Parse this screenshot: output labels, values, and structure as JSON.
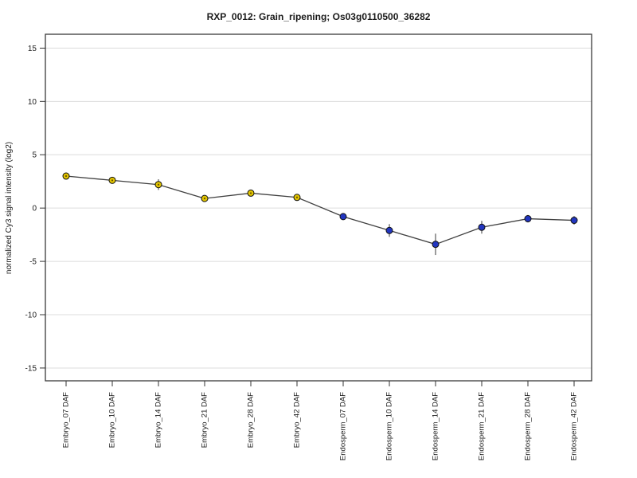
{
  "title": "RXP_0012: Grain_ripening; Os03g0110500_36282",
  "chart_data": {
    "type": "line",
    "title": "RXP_0012: Grain_ripening; Os03g0110500_36282",
    "xlabel": "",
    "ylabel": "normalized Cy3 signal intensity (log2)",
    "categories": [
      "Embryo_07 DAF",
      "Embryo_10 DAF",
      "Embryo_14 DAF",
      "Embryo_21 DAF",
      "Embryo_28 DAF",
      "Embryo_42 DAF",
      "Endosperm_07 DAF",
      "Endosperm_10 DAF",
      "Endosperm_14 DAF",
      "Endosperm_21 DAF",
      "Endosperm_28 DAF",
      "Endosperm_42 DAF"
    ],
    "series": [
      {
        "name": "normalized Cy3 signal intensity",
        "values": [
          3.0,
          2.6,
          2.2,
          0.9,
          1.4,
          1.0,
          -0.8,
          -2.1,
          -3.4,
          -1.8,
          -1.0,
          -1.15
        ],
        "errors": [
          0.15,
          0.1,
          0.5,
          0.2,
          0.1,
          0.3,
          0.2,
          0.6,
          1.0,
          0.6,
          0.35,
          0.4
        ],
        "point_color_keys": [
          "yellow",
          "yellow",
          "yellow",
          "yellow",
          "yellow",
          "yellow",
          "blue",
          "blue",
          "blue",
          "blue",
          "blue",
          "blue"
        ]
      }
    ],
    "yticks": [
      15,
      10,
      5,
      0,
      -5,
      -10,
      -15
    ],
    "ylim": [
      -16.2,
      16.3
    ],
    "grid": true,
    "legend": "none",
    "colors": {
      "yellow_marker": "#E2C500",
      "yellow_marker_center": "#6B5200",
      "blue_marker": "#2236C0",
      "marker_outline": "#111111",
      "line": "#404040",
      "grid": "#DCDCDC",
      "border": "#3a3a3a",
      "error_bar": "#4a4a4a",
      "tick": "#333333",
      "background": "#ffffff"
    }
  }
}
